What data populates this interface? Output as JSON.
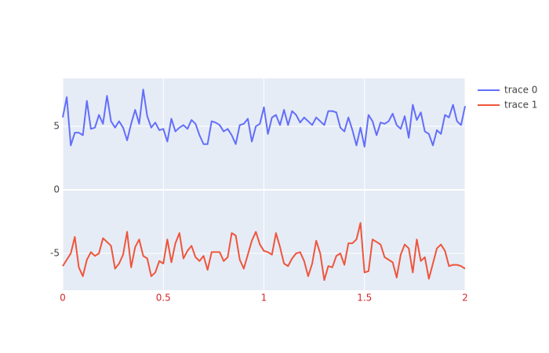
{
  "chart_data": {
    "type": "line",
    "x": [
      0,
      0.02,
      0.04,
      0.06,
      0.08,
      0.1,
      0.12,
      0.14,
      0.16,
      0.18,
      0.2,
      0.22,
      0.24,
      0.26,
      0.28,
      0.3,
      0.32,
      0.34,
      0.36,
      0.38,
      0.4,
      0.42,
      0.44,
      0.46,
      0.48,
      0.5,
      0.52,
      0.54,
      0.56,
      0.58,
      0.6,
      0.62,
      0.64,
      0.66,
      0.68,
      0.7,
      0.72,
      0.74,
      0.76,
      0.78,
      0.8,
      0.82,
      0.84,
      0.86,
      0.88,
      0.9,
      0.92,
      0.94,
      0.96,
      0.98,
      1,
      1.02,
      1.04,
      1.06,
      1.08,
      1.1,
      1.12,
      1.14,
      1.16,
      1.18,
      1.2,
      1.22,
      1.24,
      1.26,
      1.28,
      1.3,
      1.32,
      1.34,
      1.36,
      1.38,
      1.4,
      1.42,
      1.44,
      1.46,
      1.48,
      1.5,
      1.52,
      1.54,
      1.56,
      1.58,
      1.6,
      1.62,
      1.64,
      1.66,
      1.68,
      1.7,
      1.72,
      1.74,
      1.76,
      1.78,
      1.8,
      1.82,
      1.84,
      1.86,
      1.88,
      1.9,
      1.92,
      1.94,
      1.96,
      1.98,
      2
    ],
    "series": [
      {
        "name": "trace 0",
        "color": "#636efa",
        "values": [
          5.7,
          7.3,
          3.5,
          4.5,
          4.5,
          4.3,
          7.0,
          4.8,
          4.9,
          5.9,
          5.2,
          7.4,
          5.4,
          4.9,
          5.4,
          4.9,
          3.9,
          5.2,
          6.3,
          5.2,
          7.9,
          5.8,
          4.9,
          5.3,
          4.7,
          4.8,
          3.8,
          5.6,
          4.6,
          4.9,
          5.1,
          4.8,
          5.5,
          5.2,
          4.3,
          3.6,
          3.6,
          5.4,
          5.3,
          5.1,
          4.6,
          4.8,
          4.3,
          3.6,
          5.1,
          5.2,
          5.6,
          3.8,
          5.0,
          5.2,
          6.5,
          4.4,
          5.7,
          5.9,
          5.1,
          6.3,
          5.1,
          6.2,
          5.9,
          5.3,
          5.7,
          5.4,
          5.1,
          5.7,
          5.4,
          5.1,
          6.2,
          6.2,
          6.1,
          4.9,
          4.6,
          5.7,
          4.7,
          3.5,
          4.9,
          3.4,
          5.9,
          5.4,
          4.3,
          5.3,
          5.2,
          5.4,
          6.0,
          5.1,
          4.8,
          5.8,
          4.1,
          6.7,
          5.5,
          6.1,
          4.6,
          4.4,
          3.5,
          4.7,
          4.4,
          5.9,
          5.7,
          6.7,
          5.4,
          5.1,
          6.6
        ]
      },
      {
        "name": "trace 1",
        "color": "#ef553b",
        "values": [
          -6.0,
          -5.5,
          -5.0,
          -3.7,
          -6.1,
          -6.8,
          -5.5,
          -4.9,
          -5.2,
          -5.0,
          -3.8,
          -4.1,
          -4.4,
          -6.2,
          -5.8,
          -5.1,
          -3.3,
          -6.1,
          -4.5,
          -3.9,
          -5.2,
          -5.4,
          -6.8,
          -6.5,
          -5.6,
          -5.8,
          -3.9,
          -5.7,
          -4.2,
          -3.4,
          -5.4,
          -4.8,
          -4.4,
          -5.3,
          -5.6,
          -5.2,
          -6.3,
          -4.9,
          -4.9,
          -4.9,
          -5.6,
          -5.3,
          -3.4,
          -3.6,
          -5.5,
          -6.2,
          -5.1,
          -4.0,
          -3.3,
          -4.3,
          -4.8,
          -4.9,
          -5.1,
          -3.4,
          -4.5,
          -5.8,
          -6.0,
          -5.4,
          -5.0,
          -4.9,
          -5.6,
          -6.8,
          -5.8,
          -4.0,
          -5.0,
          -7.1,
          -6.0,
          -6.1,
          -5.2,
          -5.0,
          -5.9,
          -4.2,
          -4.2,
          -3.9,
          -2.6,
          -6.5,
          -6.4,
          -3.9,
          -4.1,
          -4.3,
          -5.3,
          -5.5,
          -5.7,
          -6.9,
          -5.1,
          -4.3,
          -4.6,
          -6.5,
          -3.9,
          -5.6,
          -5.3,
          -7.0,
          -5.8,
          -4.6,
          -4.3,
          -4.8,
          -6.0,
          -5.9,
          -5.9,
          -6.0,
          -6.2
        ]
      }
    ],
    "xlim": [
      0,
      2
    ],
    "xticks": [
      0,
      0.5,
      1,
      1.5,
      2
    ],
    "xtick_color": "#d62728",
    "ylim": [
      -7.9,
      8.77
    ],
    "yticks": [
      -5,
      0,
      5
    ],
    "grid": true,
    "plot_background": "#e5ecf6",
    "legend": "right"
  }
}
